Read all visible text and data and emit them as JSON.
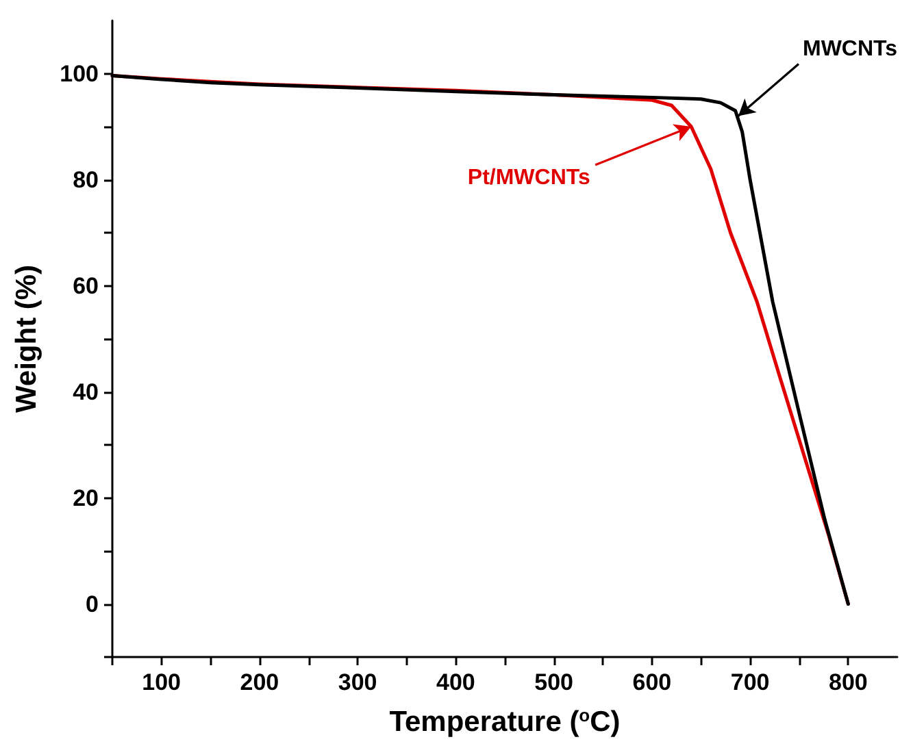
{
  "chart_data": {
    "type": "line",
    "xlabel": "Temperature ($^{o}$C)",
    "ylabel": "Weight (%)",
    "xlim": [
      50,
      850
    ],
    "ylim": [
      -10,
      110
    ],
    "xticks": [
      {
        "value": 50,
        "label": null
      },
      100,
      {
        "value": 150,
        "label": null
      },
      200,
      {
        "value": 250,
        "label": null
      },
      300,
      {
        "value": 350,
        "label": null
      },
      400,
      {
        "value": 450,
        "label": null
      },
      500,
      {
        "value": 550,
        "label": null
      },
      600,
      {
        "value": 650,
        "label": null
      },
      700,
      {
        "value": 750,
        "label": null
      },
      800
    ],
    "yticks": [
      {
        "value": -10,
        "label": null
      },
      0,
      {
        "value": 10,
        "label": null
      },
      20,
      {
        "value": 30,
        "label": null
      },
      40,
      {
        "value": 50,
        "label": null
      },
      60,
      {
        "value": 70,
        "label": null
      },
      80,
      {
        "value": 90,
        "label": null
      },
      100
    ],
    "grid": false,
    "marker": "none",
    "line_style": "solid",
    "series": [
      {
        "color": "#000000",
        "x": [
          50,
          100,
          150,
          200,
          300,
          400,
          500,
          600,
          650,
          670,
          685,
          692,
          700,
          723,
          750,
          776,
          800
        ],
        "values": [
          99.6,
          98.9,
          98.3,
          97.9,
          97.3,
          96.6,
          96,
          95.5,
          95.2,
          94.5,
          93,
          89,
          80,
          57,
          36,
          16,
          0
        ]
      },
      {
        "color": "#e00000",
        "x": [
          50,
          100,
          150,
          200,
          300,
          400,
          500,
          600,
          620,
          640,
          660,
          680,
          707,
          730,
          760,
          780,
          800
        ],
        "values": [
          99.6,
          99,
          98.5,
          98,
          97.4,
          96.8,
          96,
          95,
          94,
          90,
          82,
          70,
          57,
          43,
          25,
          13,
          0
        ]
      }
    ],
    "annotations": [
      {
        "text": "MWCNTs",
        "x": 688,
        "y": 92
      },
      {
        "text": "Pt/MWCNTs",
        "x": 640,
        "y": 90
      }
    ]
  }
}
